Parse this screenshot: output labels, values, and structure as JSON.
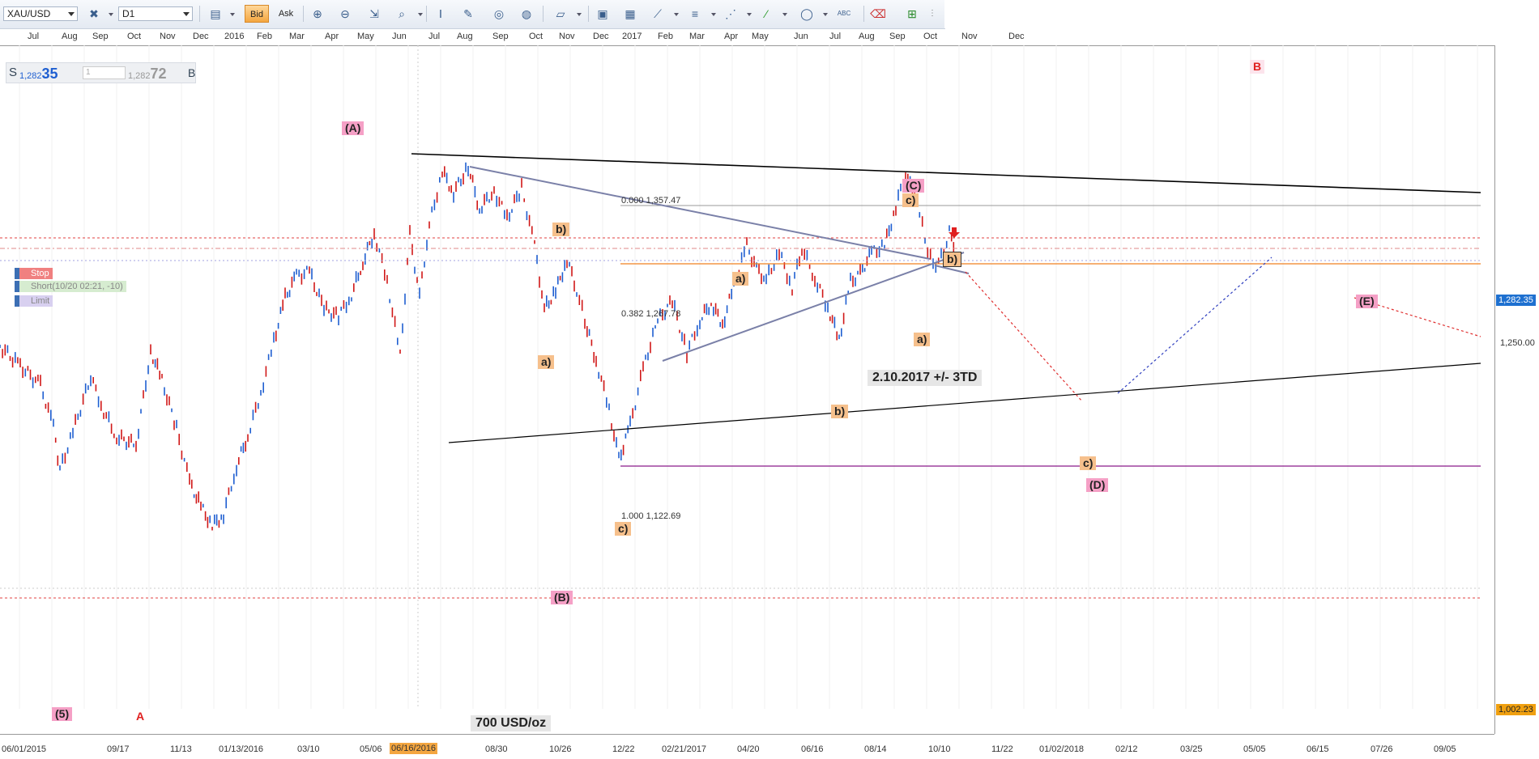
{
  "toolbar": {
    "symbol": "XAU/USD",
    "timeframe": "D1",
    "bid_label": "Bid",
    "ask_label": "Ask"
  },
  "spread": {
    "sell_prefix": "S",
    "sell_small": "1,282",
    "sell_big": "35",
    "amount": "1",
    "buy_small": "1,282",
    "buy_big": "72",
    "buy_suffix": "B"
  },
  "orders": {
    "stop": "Stop",
    "short": "Short(10/20 02:21, -10)",
    "limit": "Limit"
  },
  "top_axis": [
    "Jul",
    "Aug",
    "Sep",
    "Oct",
    "Nov",
    "Dec",
    "2016",
    "Feb",
    "Mar",
    "Apr",
    "May",
    "Jun",
    "Jul",
    "Aug",
    "Sep",
    "Oct",
    "Nov",
    "Dec",
    "2017",
    "Feb",
    "Mar",
    "Apr",
    "May",
    "Jun",
    "Jul",
    "Aug",
    "Sep",
    "Oct",
    "Nov",
    "Dec"
  ],
  "bottom_axis": [
    "06/01/2015",
    "09/17",
    "11/13",
    "01/13/2016",
    "03/10",
    "05/06",
    "06/16/2016",
    "08/30",
    "10/26",
    "12/22",
    "02/21/2017",
    "04/20",
    "06/16",
    "08/14",
    "10/10",
    "11/22",
    "01/02/2018",
    "02/12",
    "03/25",
    "05/05",
    "06/15",
    "07/26",
    "09/05"
  ],
  "price_axis": {
    "current": "1,282.35",
    "level_1250": "1,250.00",
    "level_1002": "1,002.23"
  },
  "fib": {
    "level_0": "0.000 1,357.47",
    "level_382": "0.382 1,267.78",
    "level_1": "1.000 1,122.69"
  },
  "waves": {
    "A_big": "(A)",
    "B_big": "(B)",
    "C_big": "(C)",
    "D_big": "(D)",
    "E_big": "(E)",
    "five": "(5)",
    "letter_A": "A",
    "letter_B": "B",
    "a1": "a)",
    "b1": "b)",
    "c1": "c)",
    "a2": "a)",
    "b2": "b)",
    "a3": "a)",
    "b3": "b)",
    "c3": "c)",
    "c4": "c)"
  },
  "notes": {
    "date_target": "2.10.2017 +/- 3TD",
    "price_target": "700 USD/oz"
  },
  "colors": {
    "up_candle": "#1f5fd1",
    "down_candle": "#d01818",
    "wave_big": "#f5a0c6",
    "wave_small": "#f6c08c",
    "fib_382": "#f08020",
    "fib_1": "#8a1a8a",
    "current_price_tag": "#1e70d0",
    "low_price_tag": "#f0a010"
  }
}
